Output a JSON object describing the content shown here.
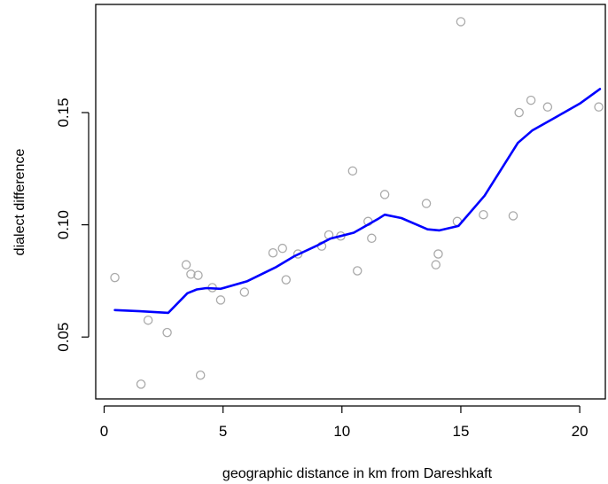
{
  "colors": {
    "points": "#aaaaaa",
    "smooth_line": "#0000ff",
    "axis": "#000000",
    "background": "#ffffff"
  },
  "chart_data": {
    "type": "scatter",
    "title": "",
    "xlabel": "geographic distance in km from Dareshkaft",
    "ylabel": "dialect difference",
    "xlim": [
      0,
      21
    ],
    "ylim": [
      0.025,
      0.195
    ],
    "xticks": [
      0,
      5,
      10,
      15,
      20
    ],
    "yticks": [
      0.05,
      0.1,
      0.15
    ],
    "xtick_labels": [
      "0",
      "5",
      "10",
      "15",
      "20"
    ],
    "ytick_labels": [
      "0.05",
      "0.10",
      "0.15"
    ],
    "grid": false,
    "series": [
      {
        "kind": "points",
        "x": [
          0.45,
          1.55,
          1.85,
          2.65,
          3.45,
          3.65,
          3.95,
          4.05,
          4.55,
          4.9,
          5.9,
          7.1,
          7.5,
          7.65,
          8.15,
          9.15,
          9.45,
          9.95,
          10.45,
          10.65,
          11.1,
          11.25,
          11.8,
          13.55,
          13.95,
          14.05,
          14.85,
          15.0,
          15.95,
          17.2,
          17.45,
          17.95,
          18.65,
          20.8
        ],
        "y": [
          0.0765,
          0.029,
          0.0575,
          0.052,
          0.0822,
          0.078,
          0.0775,
          0.033,
          0.072,
          0.0665,
          0.07,
          0.0875,
          0.0895,
          0.0755,
          0.087,
          0.0905,
          0.0955,
          0.095,
          0.124,
          0.0795,
          0.1015,
          0.094,
          0.1135,
          0.1095,
          0.0822,
          0.087,
          0.1015,
          0.1905,
          0.1045,
          0.104,
          0.15,
          0.1555,
          0.1525,
          0.1525
        ]
      },
      {
        "kind": "smooth-line",
        "x": [
          0.45,
          1.5,
          2.7,
          3.5,
          3.9,
          4.3,
          4.9,
          6.0,
          7.2,
          8.0,
          9.0,
          9.5,
          10.5,
          11.5,
          11.8,
          12.5,
          13.6,
          14.1,
          14.9,
          16.0,
          17.4,
          18.0,
          19.0,
          20.0,
          20.85
        ],
        "y": [
          0.062,
          0.0615,
          0.0608,
          0.0695,
          0.0712,
          0.0718,
          0.0715,
          0.0748,
          0.081,
          0.086,
          0.091,
          0.0938,
          0.0965,
          0.1025,
          0.1045,
          0.103,
          0.098,
          0.0975,
          0.0995,
          0.113,
          0.1365,
          0.142,
          0.148,
          0.154,
          0.1605
        ]
      }
    ]
  }
}
